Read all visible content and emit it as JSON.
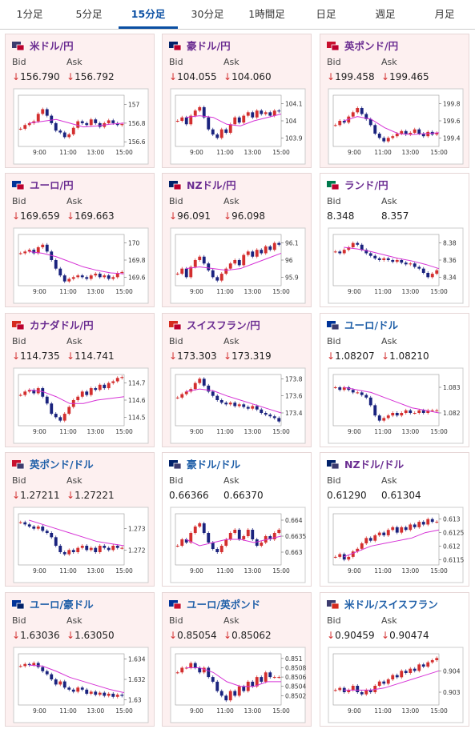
{
  "tabs": [
    "1分足",
    "5分足",
    "15分足",
    "30分足",
    "1時間足",
    "日足",
    "週足",
    "月足"
  ],
  "active_tab": 2,
  "labels": {
    "bid": "Bid",
    "ask": "Ask"
  },
  "chart_xticks": [
    "9:00",
    "11:00",
    "13:00",
    "15:00"
  ],
  "cards": [
    {
      "pair": "米ドル/円",
      "name_color": "#6a2c91",
      "highlight": true,
      "flag": [
        "#3c3b6e",
        "#bc002d"
      ],
      "bid": "↓156.790",
      "ask": "↓156.792",
      "chart": {
        "ylim": [
          156.55,
          157.1
        ],
        "yticks": [
          157,
          156.8,
          156.6
        ],
        "closes": [
          156.74,
          156.78,
          156.8,
          156.82,
          156.9,
          156.95,
          156.88,
          156.8,
          156.72,
          156.7,
          156.65,
          156.68,
          156.75,
          156.82,
          156.8,
          156.78,
          156.84,
          156.8,
          156.76,
          156.8,
          156.83,
          156.8,
          156.78,
          156.79
        ],
        "ma": [
          156.8,
          156.82,
          156.84,
          156.8,
          156.76,
          156.77,
          156.79,
          156.8
        ]
      }
    },
    {
      "pair": "豪ドル/円",
      "name_color": "#6a2c91",
      "highlight": true,
      "flag": [
        "#012169",
        "#bc002d"
      ],
      "bid": "↓104.055",
      "ask": "↓104.060",
      "chart": {
        "ylim": [
          103.85,
          104.15
        ],
        "yticks": [
          104.1,
          104,
          103.9
        ],
        "closes": [
          104,
          104.02,
          103.98,
          104.03,
          104.06,
          104.08,
          104.02,
          103.95,
          103.92,
          103.9,
          103.95,
          103.93,
          103.98,
          104.02,
          103.99,
          104.03,
          104.05,
          104.02,
          104.06,
          104.04,
          104.05,
          104.03,
          104.06,
          104.055
        ],
        "ma": [
          104.02,
          104.03,
          104.02,
          103.98,
          103.97,
          104,
          104.02,
          104.04
        ]
      }
    },
    {
      "pair": "英ポンド/円",
      "name_color": "#6a2c91",
      "highlight": true,
      "flag": [
        "#c8102e",
        "#bc002d"
      ],
      "bid": "↓199.458",
      "ask": "↓199.465",
      "chart": {
        "ylim": [
          199.3,
          199.9
        ],
        "yticks": [
          199.8,
          199.6,
          199.4
        ],
        "closes": [
          199.55,
          199.6,
          199.58,
          199.65,
          199.7,
          199.75,
          199.68,
          199.62,
          199.55,
          199.45,
          199.4,
          199.36,
          199.4,
          199.42,
          199.45,
          199.48,
          199.44,
          199.46,
          199.5,
          199.45,
          199.42,
          199.47,
          199.44,
          199.458
        ],
        "ma": [
          199.6,
          199.65,
          199.62,
          199.52,
          199.45,
          199.44,
          199.45,
          199.46
        ]
      }
    },
    {
      "pair": "ユーロ/円",
      "name_color": "#6a2c91",
      "highlight": true,
      "flag": [
        "#003399",
        "#bc002d"
      ],
      "bid": "↓169.659",
      "ask": "↓169.663",
      "chart": {
        "ylim": [
          169.5,
          170.1
        ],
        "yticks": [
          170,
          169.8,
          169.6
        ],
        "closes": [
          169.88,
          169.9,
          169.92,
          169.88,
          169.95,
          169.98,
          169.9,
          169.8,
          169.7,
          169.62,
          169.55,
          169.58,
          169.6,
          169.62,
          169.6,
          169.58,
          169.62,
          169.64,
          169.6,
          169.62,
          169.58,
          169.6,
          169.65,
          169.66
        ],
        "ma": [
          169.9,
          169.88,
          169.84,
          169.78,
          169.72,
          169.68,
          169.65,
          169.64
        ]
      }
    },
    {
      "pair": "NZドル/円",
      "name_color": "#6a2c91",
      "highlight": true,
      "flag": [
        "#012169",
        "#bc002d"
      ],
      "bid": "↓96.091",
      "ask": "↓96.098",
      "chart": {
        "ylim": [
          95.85,
          96.15
        ],
        "yticks": [
          96.1,
          96,
          95.9
        ],
        "closes": [
          95.92,
          95.95,
          95.9,
          95.96,
          96,
          96.02,
          95.98,
          95.94,
          95.9,
          95.88,
          95.92,
          95.95,
          95.98,
          96,
          95.97,
          96.03,
          96.05,
          96.02,
          96.06,
          96.04,
          96.08,
          96.06,
          96.1,
          96.09
        ],
        "ma": [
          95.95,
          95.96,
          95.95,
          95.94,
          95.95,
          95.98,
          96.01,
          96.04
        ]
      }
    },
    {
      "pair": "ランド/円",
      "name_color": "#6a2c91",
      "highlight": false,
      "flag": [
        "#007a4d",
        "#bc002d"
      ],
      "bid": "8.348",
      "ask": "8.357",
      "chart": {
        "ylim": [
          8.33,
          8.39
        ],
        "yticks": [
          8.38,
          8.36,
          8.34
        ],
        "closes": [
          8.37,
          8.368,
          8.372,
          8.375,
          8.38,
          8.378,
          8.372,
          8.368,
          8.365,
          8.362,
          8.36,
          8.362,
          8.36,
          8.358,
          8.36,
          8.357,
          8.355,
          8.356,
          8.352,
          8.35,
          8.345,
          8.34,
          8.344,
          8.348
        ],
        "ma": [
          8.375,
          8.373,
          8.37,
          8.366,
          8.362,
          8.359,
          8.355,
          8.35
        ]
      }
    },
    {
      "pair": "カナダドル/円",
      "name_color": "#6a2c91",
      "highlight": true,
      "flag": [
        "#d52b1e",
        "#bc002d"
      ],
      "bid": "↓114.735",
      "ask": "↓114.741",
      "chart": {
        "ylim": [
          114.45,
          114.75
        ],
        "yticks": [
          114.7,
          114.6,
          114.5
        ],
        "closes": [
          114.63,
          114.65,
          114.66,
          114.64,
          114.67,
          114.62,
          114.58,
          114.52,
          114.5,
          114.48,
          114.52,
          114.56,
          114.6,
          114.62,
          114.65,
          114.63,
          114.67,
          114.66,
          114.69,
          114.67,
          114.7,
          114.71,
          114.73,
          114.735
        ],
        "ma": [
          114.66,
          114.65,
          114.62,
          114.58,
          114.58,
          114.6,
          114.61,
          114.62
        ]
      }
    },
    {
      "pair": "スイスフラン/円",
      "name_color": "#6a2c91",
      "highlight": true,
      "flag": [
        "#d52b1e",
        "#bc002d"
      ],
      "bid": "↓173.303",
      "ask": "↓173.319",
      "chart": {
        "ylim": [
          173.25,
          173.85
        ],
        "yticks": [
          173.8,
          173.6,
          173.4
        ],
        "closes": [
          173.58,
          173.62,
          173.65,
          173.68,
          173.75,
          173.8,
          173.72,
          173.65,
          173.6,
          173.55,
          173.52,
          173.5,
          173.52,
          173.48,
          173.5,
          173.47,
          173.45,
          173.48,
          173.44,
          173.4,
          173.38,
          173.36,
          173.34,
          173.3
        ],
        "ma": [
          173.65,
          173.68,
          173.66,
          173.6,
          173.55,
          173.5,
          173.45,
          173.4
        ]
      }
    },
    {
      "pair": "ユーロ/ドル",
      "name_color": "#1f5fa8",
      "highlight": false,
      "flag": [
        "#003399",
        "#3c3b6e"
      ],
      "bid": "↓1.08207",
      "ask": "↓1.08210",
      "chart": {
        "ylim": [
          1.0815,
          1.0835
        ],
        "yticks": [
          1.083,
          1.082
        ],
        "closes": [
          1.083,
          1.0829,
          1.083,
          1.0829,
          1.0828,
          1.0828,
          1.0827,
          1.0826,
          1.0823,
          1.0819,
          1.0817,
          1.0818,
          1.0819,
          1.082,
          1.0819,
          1.082,
          1.0821,
          1.082,
          1.082,
          1.0821,
          1.082,
          1.0821,
          1.0821,
          1.0821
        ],
        "ma": [
          1.083,
          1.0829,
          1.0828,
          1.0826,
          1.0824,
          1.0822,
          1.0821,
          1.082
        ]
      }
    },
    {
      "pair": "英ポンド/ドル",
      "name_color": "#1f5fa8",
      "highlight": true,
      "flag": [
        "#c8102e",
        "#3c3b6e"
      ],
      "bid": "↓1.27211",
      "ask": "↓1.27221",
      "chart": {
        "ylim": [
          1.2713,
          1.2737
        ],
        "yticks": [
          1.273,
          1.272
        ],
        "closes": [
          1.2733,
          1.2732,
          1.2731,
          1.273,
          1.2731,
          1.2729,
          1.2728,
          1.2726,
          1.2722,
          1.2719,
          1.2718,
          1.272,
          1.2719,
          1.2721,
          1.2722,
          1.272,
          1.2721,
          1.2719,
          1.2722,
          1.2721,
          1.272,
          1.2722,
          1.2721,
          1.2721
        ],
        "ma": [
          1.2734,
          1.2732,
          1.273,
          1.2728,
          1.2726,
          1.2724,
          1.2723,
          1.2722
        ]
      }
    },
    {
      "pair": "豪ドル/ドル",
      "name_color": "#1f5fa8",
      "highlight": false,
      "flag": [
        "#012169",
        "#3c3b6e"
      ],
      "bid": "0.66366",
      "ask": "0.66370",
      "chart": {
        "ylim": [
          0.6626,
          0.6642
        ],
        "yticks": [
          0.664,
          0.6635,
          0.663
        ],
        "closes": [
          0.6632,
          0.6634,
          0.6633,
          0.6636,
          0.6638,
          0.6639,
          0.6636,
          0.6633,
          0.6631,
          0.663,
          0.6632,
          0.6634,
          0.6636,
          0.6637,
          0.6634,
          0.6635,
          0.6637,
          0.6634,
          0.6632,
          0.6633,
          0.6635,
          0.6634,
          0.6636,
          0.6637
        ],
        "ma": [
          0.6634,
          0.6632,
          0.6633,
          0.6634,
          0.6634,
          0.6633,
          0.6634,
          0.6635
        ]
      }
    },
    {
      "pair": "NZドル/ドル",
      "name_color": "#6a2c91",
      "highlight": false,
      "flag": [
        "#012169",
        "#3c3b6e"
      ],
      "bid": "0.61290",
      "ask": "0.61304",
      "chart": {
        "ylim": [
          0.6113,
          0.6132
        ],
        "yticks": [
          0.613,
          0.6125,
          0.612,
          0.6115
        ],
        "closes": [
          0.6116,
          0.6117,
          0.6115,
          0.6116,
          0.6118,
          0.6119,
          0.6121,
          0.6123,
          0.6122,
          0.6124,
          0.6125,
          0.6124,
          0.6126,
          0.6127,
          0.6125,
          0.6127,
          0.6126,
          0.6128,
          0.6127,
          0.6129,
          0.6128,
          0.613,
          0.6129,
          0.6129
        ],
        "ma": [
          0.6116,
          0.6118,
          0.612,
          0.6121,
          0.6122,
          0.6123,
          0.6125,
          0.6126
        ]
      }
    },
    {
      "pair": "ユーロ/豪ドル",
      "name_color": "#1f5fa8",
      "highlight": true,
      "flag": [
        "#003399",
        "#012169"
      ],
      "bid": "↓1.63036",
      "ask": "↓1.63050",
      "chart": {
        "ylim": [
          1.6295,
          1.6345
        ],
        "yticks": [
          1.634,
          1.632,
          1.63
        ],
        "closes": [
          1.6333,
          1.6335,
          1.6334,
          1.6336,
          1.6332,
          1.6328,
          1.6325,
          1.632,
          1.6315,
          1.6318,
          1.6312,
          1.631,
          1.6308,
          1.6312,
          1.631,
          1.6306,
          1.6308,
          1.6305,
          1.6307,
          1.6304,
          1.6306,
          1.6303,
          1.6305,
          1.6304
        ],
        "ma": [
          1.6334,
          1.6333,
          1.6328,
          1.6322,
          1.6318,
          1.6314,
          1.631,
          1.6307
        ]
      }
    },
    {
      "pair": "ユーロ/英ポンド",
      "name_color": "#1f5fa8",
      "highlight": true,
      "flag": [
        "#003399",
        "#c8102e"
      ],
      "bid": "↓0.85054",
      "ask": "↓0.85062",
      "chart": {
        "ylim": [
          0.85,
          0.8511
        ],
        "yticks": [
          0.851,
          0.8508,
          0.8506,
          0.8504,
          0.8502
        ],
        "closes": [
          0.8507,
          0.8508,
          0.8508,
          0.8509,
          0.8508,
          0.8507,
          0.8508,
          0.8506,
          0.8505,
          0.8503,
          0.8502,
          0.8501,
          0.8503,
          0.8502,
          0.8504,
          0.8503,
          0.8505,
          0.8504,
          0.8506,
          0.8505,
          0.8507,
          0.8506,
          0.8506,
          0.8506
        ],
        "ma": [
          0.8508,
          0.8508,
          0.8507,
          0.8505,
          0.8504,
          0.8504,
          0.8505,
          0.8505
        ]
      }
    },
    {
      "pair": "米ドル/スイスフラン",
      "name_color": "#1f5fa8",
      "highlight": false,
      "flag": [
        "#3c3b6e",
        "#d52b1e"
      ],
      "bid": "↓0.90459",
      "ask": "↓0.90474",
      "chart": {
        "ylim": [
          0.9024,
          0.9048
        ],
        "yticks": [
          0.904,
          0.903
        ],
        "closes": [
          0.9031,
          0.9032,
          0.903,
          0.9031,
          0.9033,
          0.903,
          0.9029,
          0.9031,
          0.903,
          0.9033,
          0.9035,
          0.9034,
          0.9036,
          0.9038,
          0.9037,
          0.904,
          0.9039,
          0.9041,
          0.904,
          0.9043,
          0.9042,
          0.9044,
          0.9045,
          0.9046
        ],
        "ma": [
          0.9031,
          0.9031,
          0.9031,
          0.9032,
          0.9034,
          0.9036,
          0.9038,
          0.904
        ]
      }
    }
  ]
}
